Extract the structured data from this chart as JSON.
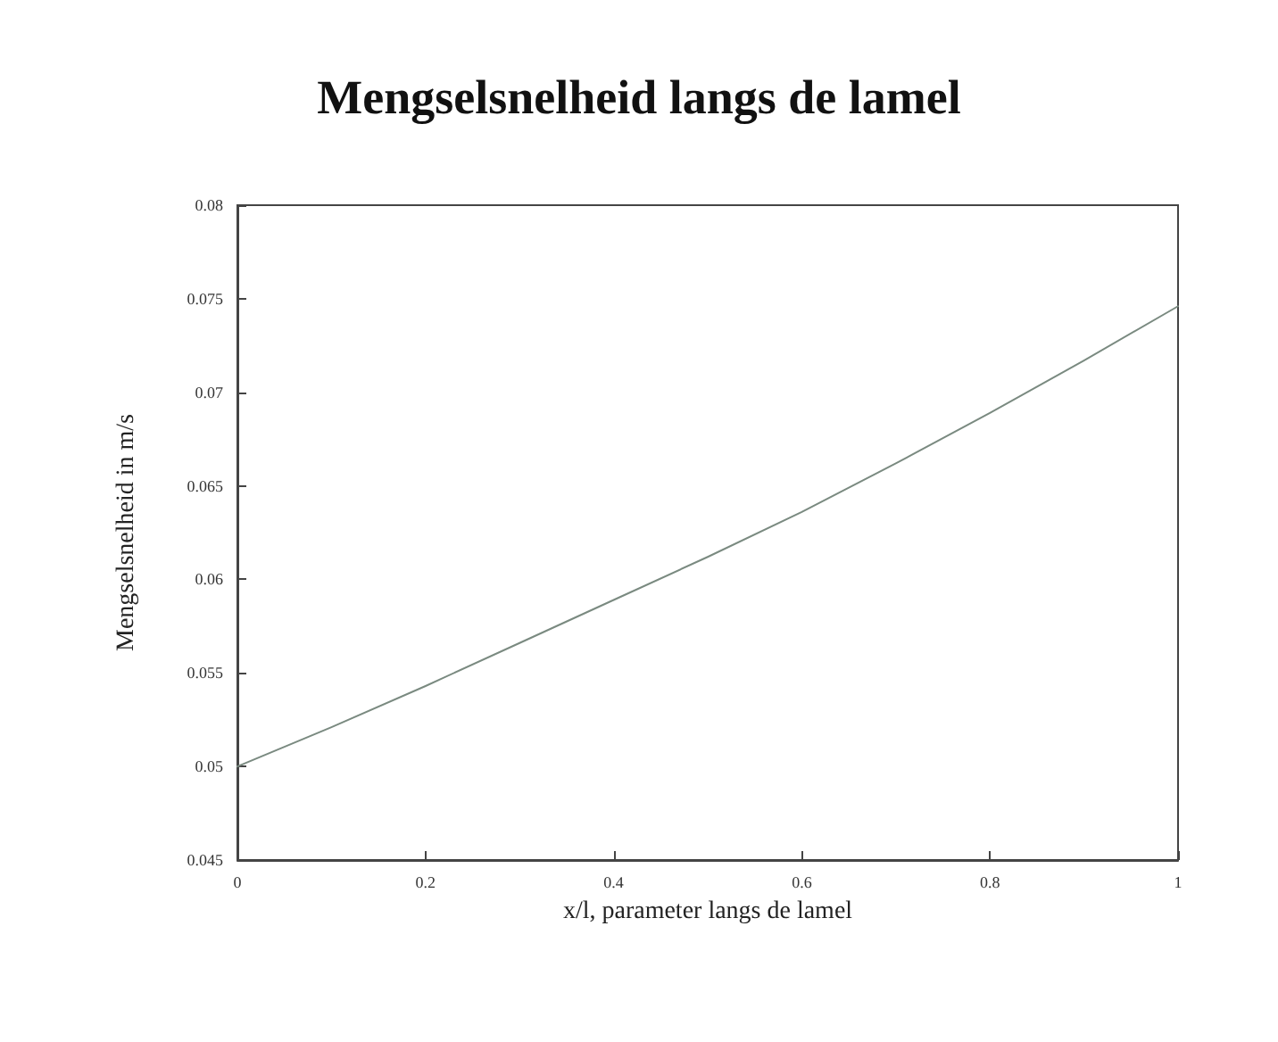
{
  "chart_data": {
    "type": "line",
    "title": "Mengselsnelheid langs de lamel",
    "xlabel": "x/l, parameter langs de lamel",
    "ylabel": "Mengselsnelheid in m/s",
    "x": [
      0,
      0.1,
      0.2,
      0.3,
      0.4,
      0.5,
      0.6,
      0.7,
      0.8,
      0.9,
      1
    ],
    "series": [
      {
        "color": "#7a8a80",
        "values": [
          0.05,
          0.0521,
          0.0543,
          0.0566,
          0.0589,
          0.0612,
          0.0636,
          0.0662,
          0.0689,
          0.0717,
          0.0746
        ]
      }
    ],
    "xlim": [
      0,
      1
    ],
    "xticks": [
      0,
      0.2,
      0.4,
      0.6,
      0.8,
      1
    ],
    "ylim": [
      0.045,
      0.08
    ],
    "yticks": [
      0.045,
      0.05,
      0.055,
      0.06,
      0.065,
      0.07,
      0.075,
      0.08
    ],
    "grid": false,
    "marker": "none",
    "line_style": "solid"
  }
}
